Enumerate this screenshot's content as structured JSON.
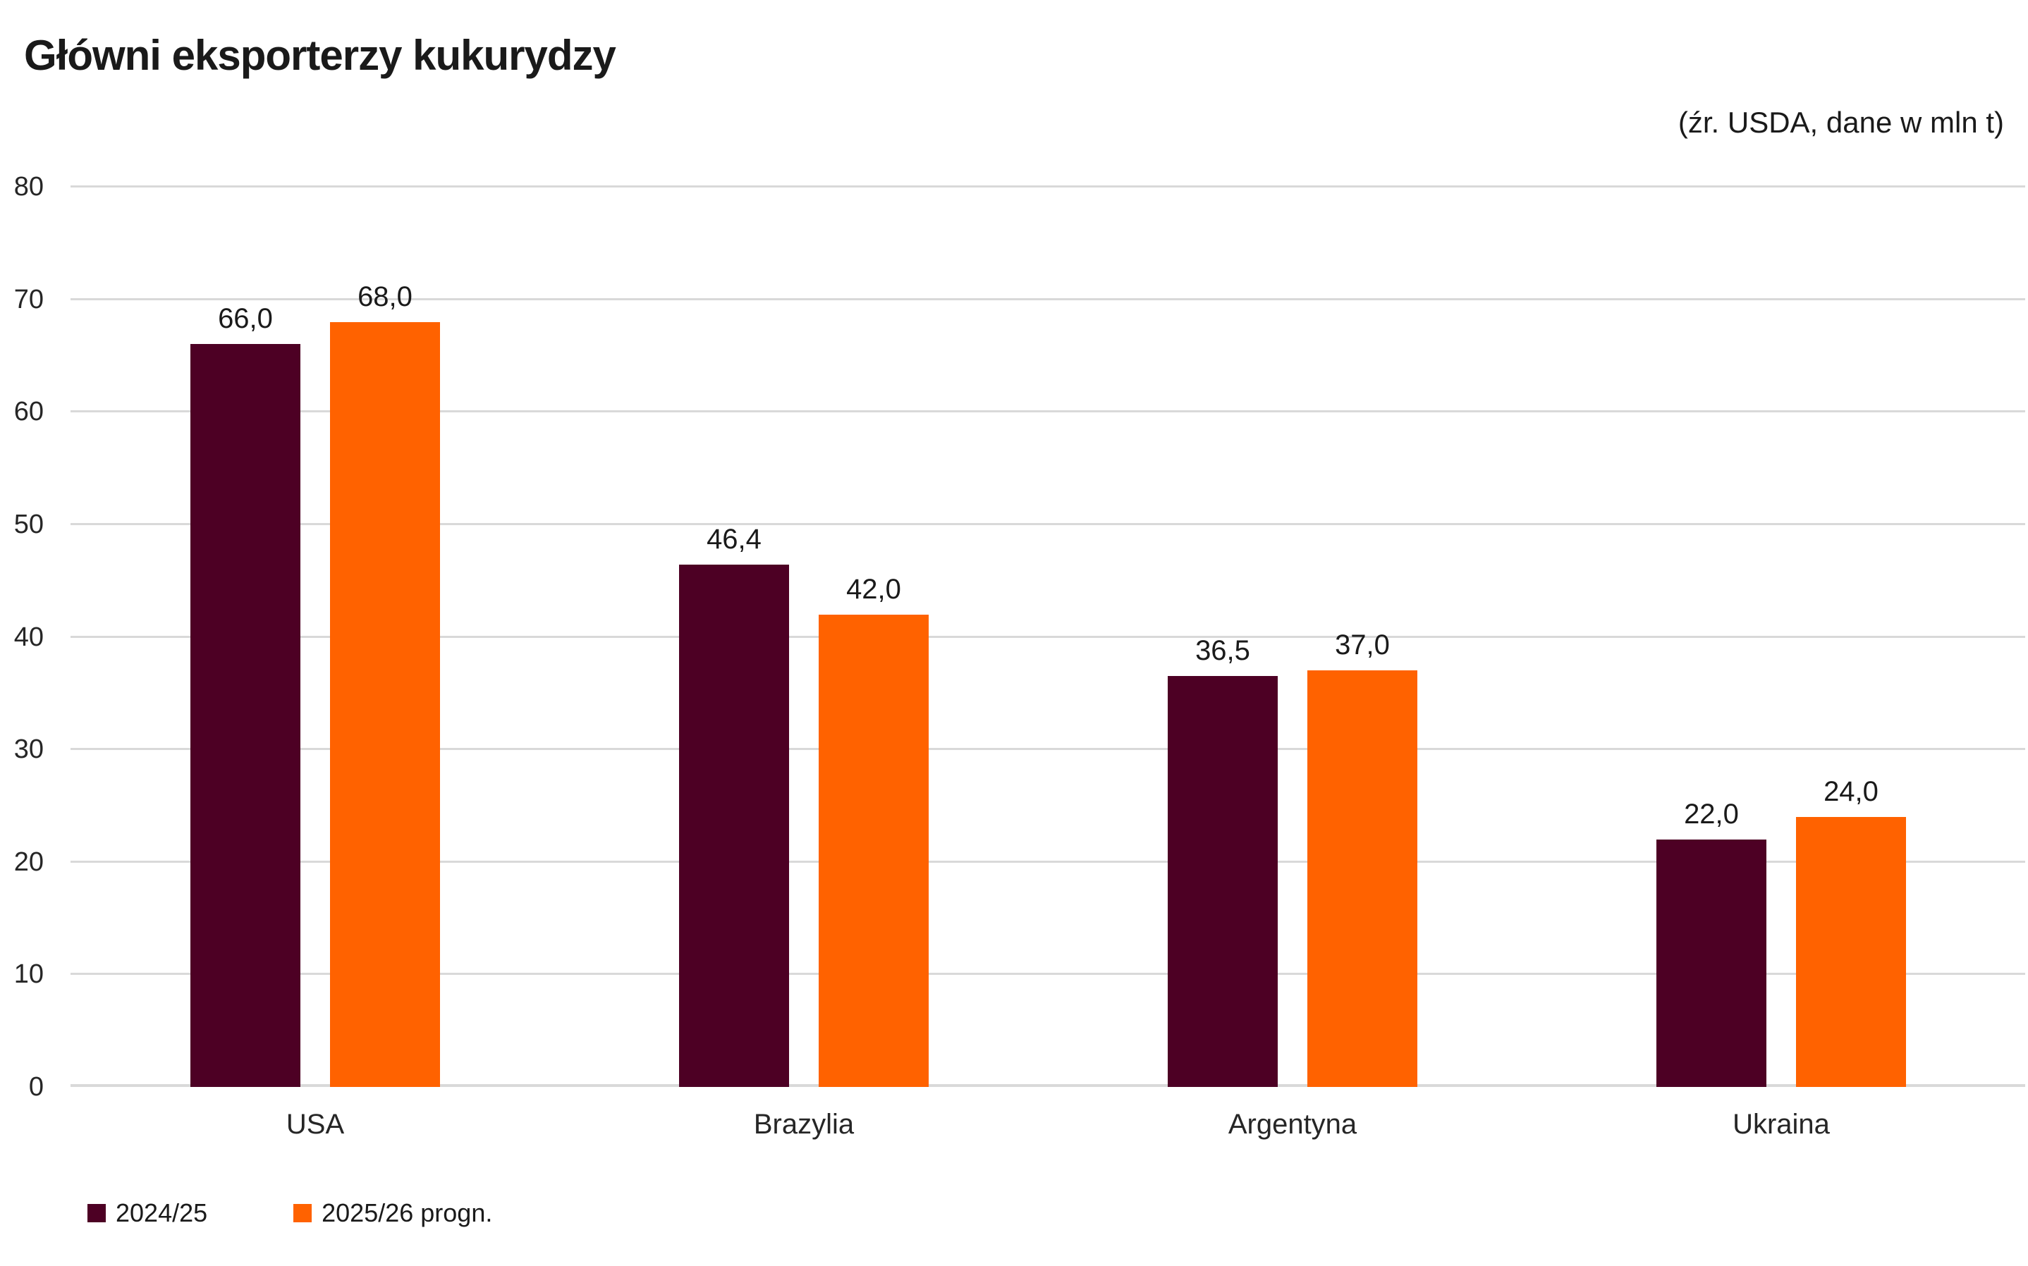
{
  "chart": {
    "title": "Główni eksporterzy kukurydzy",
    "subtitle": "(źr. USDA, dane w mln t)"
  },
  "chart_data": {
    "type": "bar",
    "title": "Główni eksporterzy kukurydzy",
    "subtitle": "(źr. USDA, dane w mln t)",
    "categories": [
      "USA",
      "Brazylia",
      "Argentyna",
      "Ukraina"
    ],
    "series": [
      {
        "name": "2024/25",
        "color": "#4D0024",
        "values": [
          66.0,
          46.4,
          36.5,
          22.0
        ],
        "labels": [
          "66,0",
          "46,4",
          "36,5",
          "22,0"
        ]
      },
      {
        "name": "2025/26 progn.",
        "color": "#FF6200",
        "values": [
          68.0,
          42.0,
          37.0,
          24.0
        ],
        "labels": [
          "68,0",
          "42,0",
          "37,0",
          "24,0"
        ]
      }
    ],
    "xlabel": "",
    "ylabel": "",
    "ylim": [
      0,
      80
    ],
    "yticks": [
      0,
      10,
      20,
      30,
      40,
      50,
      60,
      70,
      80
    ],
    "grid": "horizontal",
    "gridline_color": "#D9D9D9",
    "legend_position": "bottom-left",
    "background": "#FFFFFF",
    "value_labels": "above-bars, comma decimal"
  }
}
